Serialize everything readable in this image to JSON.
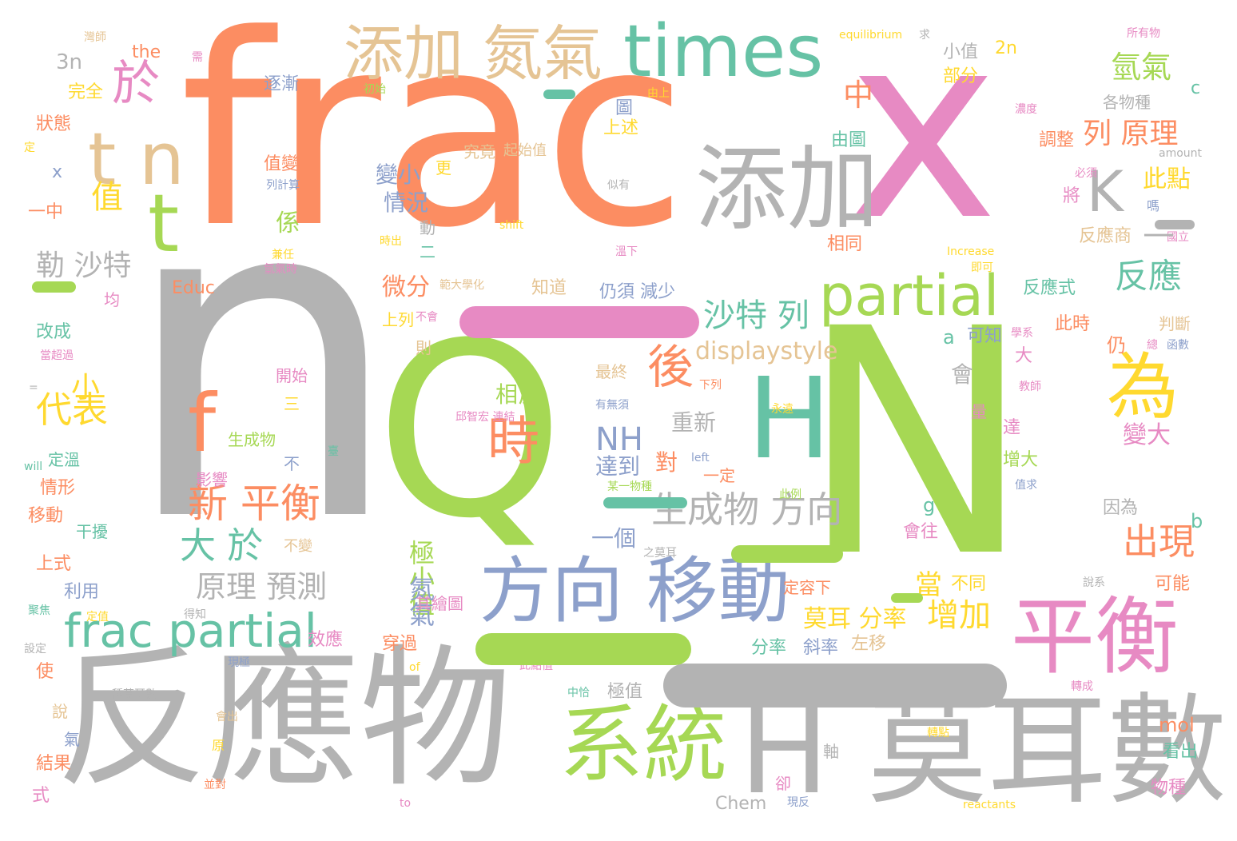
{
  "palette": {
    "gray": "#b3b3b3",
    "orange": "#fc8d62",
    "pink": "#e78ac3",
    "green": "#a6d854",
    "teal": "#66c2a5",
    "blue": "#8da0cb",
    "tan": "#e5c494",
    "yellow": "#ffd92f"
  },
  "words": [
    {
      "text": "n",
      "color": "gray"
    },
    {
      "text": "frac",
      "color": "orange"
    },
    {
      "text": "x",
      "color": "pink"
    },
    {
      "text": "N",
      "color": "green"
    },
    {
      "text": "Q",
      "color": "green"
    },
    {
      "text": "反應物",
      "color": "gray"
    },
    {
      "text": "H 莫耳數",
      "color": "gray"
    },
    {
      "text": "H",
      "color": "teal"
    },
    {
      "text": "添加",
      "color": "gray"
    },
    {
      "text": "平衡",
      "color": "pink"
    },
    {
      "text": "系統",
      "color": "green"
    },
    {
      "text": "方向 移動",
      "color": "blue"
    },
    {
      "text": "times",
      "color": "teal"
    },
    {
      "text": "添加 氮氣",
      "color": "tan"
    },
    {
      "text": "為",
      "color": "yellow"
    },
    {
      "text": "partial",
      "color": "green"
    },
    {
      "text": "frac partial",
      "color": "teal"
    },
    {
      "text": "時",
      "color": "orange"
    },
    {
      "text": "t",
      "color": "green"
    },
    {
      "text": "t n",
      "color": "tan"
    },
    {
      "text": "f",
      "color": "orange"
    },
    {
      "text": "於",
      "color": "pink"
    },
    {
      "text": "後",
      "color": "orange"
    },
    {
      "text": "K",
      "color": "gray"
    },
    {
      "text": "新 平衡",
      "color": "orange"
    },
    {
      "text": "生成物 方向",
      "color": "gray"
    },
    {
      "text": "反應",
      "color": "teal"
    },
    {
      "text": "出現",
      "color": "orange"
    },
    {
      "text": "代表",
      "color": "yellow"
    },
    {
      "text": "大 於",
      "color": "teal"
    },
    {
      "text": "增加",
      "color": "yellow"
    },
    {
      "text": "值",
      "color": "yellow"
    },
    {
      "text": "沙特 列",
      "color": "teal"
    },
    {
      "text": "displaystyle",
      "color": "tan"
    },
    {
      "text": "原理 預測",
      "color": "gray"
    },
    {
      "text": "NH",
      "color": "blue"
    },
    {
      "text": "勒 沙特",
      "color": "gray"
    },
    {
      "text": "氫氣",
      "color": "green"
    },
    {
      "text": "列 原理",
      "color": "orange"
    },
    {
      "text": "小",
      "color": "yellow"
    },
    {
      "text": "中",
      "color": "orange"
    },
    {
      "text": "極小值",
      "color": "green"
    },
    {
      "text": "氮氣",
      "color": "blue"
    },
    {
      "text": "莫耳 分率",
      "color": "yellow"
    },
    {
      "text": "當",
      "color": "yellow"
    },
    {
      "text": "此點",
      "color": "yellow"
    },
    {
      "text": "微分",
      "color": "orange"
    },
    {
      "text": "係",
      "color": "green"
    },
    {
      "text": "變大",
      "color": "pink"
    },
    {
      "text": "變小",
      "color": "blue"
    },
    {
      "text": "情況",
      "color": "blue"
    },
    {
      "text": "重新",
      "color": "gray"
    },
    {
      "text": "會",
      "color": "gray"
    },
    {
      "text": "相反",
      "color": "green"
    },
    {
      "text": "達到",
      "color": "blue"
    },
    {
      "text": "對",
      "color": "orange"
    },
    {
      "text": "一個",
      "color": "blue"
    },
    {
      "text": "3n",
      "color": "gray"
    },
    {
      "text": "the",
      "color": "orange"
    },
    {
      "text": "2n",
      "color": "yellow"
    },
    {
      "text": "小值",
      "color": "gray"
    },
    {
      "text": "部分",
      "color": "yellow"
    },
    {
      "text": "完全",
      "color": "yellow"
    },
    {
      "text": "狀態",
      "color": "orange"
    },
    {
      "text": "逐漸",
      "color": "blue"
    },
    {
      "text": "x",
      "color": "blue"
    },
    {
      "text": "一中",
      "color": "orange"
    },
    {
      "text": "值變",
      "color": "orange"
    },
    {
      "text": "究竟",
      "color": "tan"
    },
    {
      "text": "起始值",
      "color": "tan"
    },
    {
      "text": "更",
      "color": "yellow"
    },
    {
      "text": "上述",
      "color": "yellow"
    },
    {
      "text": "圖",
      "color": "blue"
    },
    {
      "text": "由圖",
      "color": "teal"
    },
    {
      "text": "調整",
      "color": "orange"
    },
    {
      "text": "各物種",
      "color": "gray"
    },
    {
      "text": "c",
      "color": "teal"
    },
    {
      "text": "將",
      "color": "pink"
    },
    {
      "text": "反應商",
      "color": "tan"
    },
    {
      "text": "相同",
      "color": "orange"
    },
    {
      "text": "反應式",
      "color": "teal"
    },
    {
      "text": "此時",
      "color": "orange"
    },
    {
      "text": "判斷",
      "color": "tan"
    },
    {
      "text": "仍",
      "color": "orange"
    },
    {
      "text": "a",
      "color": "teal"
    },
    {
      "text": "可知",
      "color": "blue"
    },
    {
      "text": "大",
      "color": "pink"
    },
    {
      "text": "達",
      "color": "pink"
    },
    {
      "text": "增大",
      "color": "green"
    },
    {
      "text": "因為",
      "color": "gray"
    },
    {
      "text": "b",
      "color": "teal"
    },
    {
      "text": "可能",
      "color": "orange"
    },
    {
      "text": "不同",
      "color": "yellow"
    },
    {
      "text": "會往",
      "color": "pink"
    },
    {
      "text": "g",
      "color": "teal"
    },
    {
      "text": "分率",
      "color": "teal"
    },
    {
      "text": "斜率",
      "color": "blue"
    },
    {
      "text": "左移",
      "color": "tan"
    },
    {
      "text": "mol",
      "color": "orange"
    },
    {
      "text": "看出",
      "color": "teal"
    },
    {
      "text": "物種",
      "color": "pink"
    },
    {
      "text": "Chem",
      "color": "gray"
    },
    {
      "text": "極值",
      "color": "gray"
    },
    {
      "text": "仍須 減少",
      "color": "blue"
    },
    {
      "text": "知道",
      "color": "tan"
    },
    {
      "text": "上列",
      "color": "yellow"
    },
    {
      "text": "則",
      "color": "tan"
    },
    {
      "text": "Educ",
      "color": "orange"
    },
    {
      "text": "改成",
      "color": "teal"
    },
    {
      "text": "均",
      "color": "pink"
    },
    {
      "text": "開始",
      "color": "pink"
    },
    {
      "text": "三",
      "color": "yellow"
    },
    {
      "text": "生成物",
      "color": "green"
    },
    {
      "text": "不",
      "color": "blue"
    },
    {
      "text": "影響",
      "color": "pink"
    },
    {
      "text": "情形",
      "color": "orange"
    },
    {
      "text": "定溫",
      "color": "teal"
    },
    {
      "text": "移動",
      "color": "orange"
    },
    {
      "text": "干擾",
      "color": "teal"
    },
    {
      "text": "不變",
      "color": "tan"
    },
    {
      "text": "上式",
      "color": "orange"
    },
    {
      "text": "利用",
      "color": "blue"
    },
    {
      "text": "效應",
      "color": "pink"
    },
    {
      "text": "穿過",
      "color": "orange"
    },
    {
      "text": "使",
      "color": "orange"
    },
    {
      "text": "說",
      "color": "tan"
    },
    {
      "text": "氣",
      "color": "blue"
    },
    {
      "text": "結果",
      "color": "orange"
    },
    {
      "text": "式",
      "color": "pink"
    },
    {
      "text": "其繪圖",
      "color": "pink"
    },
    {
      "text": "最終",
      "color": "tan"
    },
    {
      "text": "一定",
      "color": "orange"
    },
    {
      "text": "定容下",
      "color": "orange"
    },
    {
      "text": "卻",
      "color": "pink"
    },
    {
      "text": "軸",
      "color": "gray"
    },
    {
      "text": "動",
      "color": "gray"
    },
    {
      "text": "二",
      "color": "teal"
    },
    {
      "text": "量",
      "color": "pink"
    },
    {
      "text": "equilibrium",
      "color": "yellow"
    },
    {
      "text": "求",
      "color": "gray"
    },
    {
      "text": "所有物",
      "color": "pink"
    },
    {
      "text": "濃度",
      "color": "pink"
    },
    {
      "text": "必須",
      "color": "pink"
    },
    {
      "text": "amount",
      "color": "gray"
    },
    {
      "text": "嗎",
      "color": "blue"
    },
    {
      "text": "國立",
      "color": "pink"
    },
    {
      "text": "shift",
      "color": "yellow"
    },
    {
      "text": "Increase",
      "color": "yellow"
    },
    {
      "text": "即可",
      "color": "yellow"
    },
    {
      "text": "溫下",
      "color": "pink"
    },
    {
      "text": "似有",
      "color": "gray"
    },
    {
      "text": "列計算",
      "color": "blue"
    },
    {
      "text": "兼任",
      "color": "yellow"
    },
    {
      "text": "氫氣時",
      "color": "pink"
    },
    {
      "text": "範大學化",
      "color": "tan"
    },
    {
      "text": "不會",
      "color": "pink"
    },
    {
      "text": "時出",
      "color": "yellow"
    },
    {
      "text": "由上",
      "color": "yellow"
    },
    {
      "text": "初始",
      "color": "green"
    },
    {
      "text": "需",
      "color": "pink"
    },
    {
      "text": "灣師",
      "color": "tan"
    },
    {
      "text": "定",
      "color": "yellow"
    },
    {
      "text": "當超過",
      "color": "pink"
    },
    {
      "text": "下列",
      "color": "orange"
    },
    {
      "text": "有無須",
      "color": "blue"
    },
    {
      "text": "永遠",
      "color": "yellow"
    },
    {
      "text": "邱智宏 連結",
      "color": "pink"
    },
    {
      "text": "left",
      "color": "blue"
    },
    {
      "text": "某一物種",
      "color": "green"
    },
    {
      "text": "此例",
      "color": "green"
    },
    {
      "text": "之莫耳",
      "color": "gray"
    },
    {
      "text": "學系",
      "color": "pink"
    },
    {
      "text": "總",
      "color": "pink"
    },
    {
      "text": "函數",
      "color": "blue"
    },
    {
      "text": "教師",
      "color": "pink"
    },
    {
      "text": "值求",
      "color": "blue"
    },
    {
      "text": "說系",
      "color": "gray"
    },
    {
      "text": "will",
      "color": "teal"
    },
    {
      "text": "聚焦",
      "color": "teal"
    },
    {
      "text": "定值",
      "color": "yellow"
    },
    {
      "text": "得知",
      "color": "gray"
    },
    {
      "text": "設定",
      "color": "gray"
    },
    {
      "text": "現極",
      "color": "blue"
    },
    {
      "text": "of",
      "color": "yellow"
    },
    {
      "text": "此點值",
      "color": "pink"
    },
    {
      "text": "中恰",
      "color": "teal"
    },
    {
      "text": "轉成",
      "color": "pink"
    },
    {
      "text": "轉點",
      "color": "yellow"
    },
    {
      "text": "種莫耳數",
      "color": "gray"
    },
    {
      "text": "會出",
      "color": "tan"
    },
    {
      "text": "原",
      "color": "yellow"
    },
    {
      "text": "並對",
      "color": "orange"
    },
    {
      "text": "現反",
      "color": "blue"
    },
    {
      "text": "to",
      "color": "pink"
    },
    {
      "text": "reactants",
      "color": "yellow"
    },
    {
      "text": "=",
      "color": "gray"
    },
    {
      "text": "臺",
      "color": "teal"
    },
    {
      "text": "—",
      "color": "gray"
    }
  ],
  "bars": [
    {
      "color": "gray"
    },
    {
      "color": "pink"
    },
    {
      "color": "green"
    },
    {
      "color": "green"
    },
    {
      "color": "green"
    },
    {
      "color": "teal"
    },
    {
      "color": "teal"
    },
    {
      "color": "green"
    },
    {
      "color": "gray"
    }
  ]
}
